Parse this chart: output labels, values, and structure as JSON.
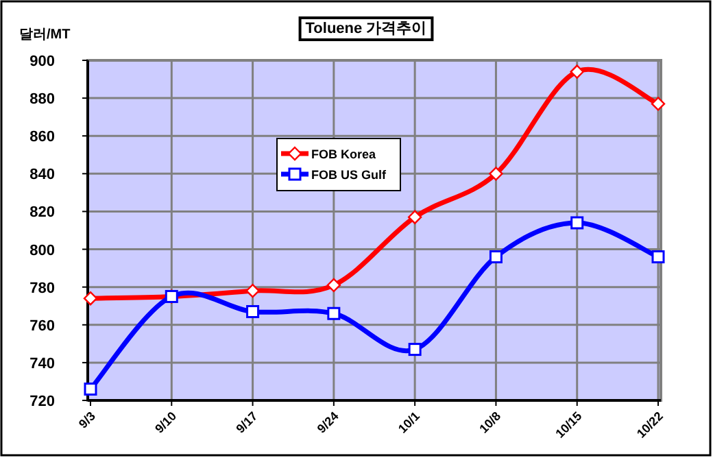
{
  "chart_data": {
    "type": "line",
    "title": "Toluene 가격추이",
    "ylabel": "달러/MT",
    "categories": [
      "9/3",
      "9/10",
      "9/17",
      "9/24",
      "10/1",
      "10/8",
      "10/15",
      "10/22"
    ],
    "series": [
      {
        "name": "FOB Korea",
        "color": "#ff0000",
        "marker": "diamond",
        "values": [
          774,
          775,
          778,
          781,
          817,
          840,
          894,
          877
        ]
      },
      {
        "name": "FOB US Gulf",
        "color": "#0000ff",
        "marker": "square",
        "values": [
          726,
          775,
          767,
          766,
          747,
          796,
          814,
          796
        ]
      }
    ],
    "ylim": [
      720,
      900
    ],
    "yticks": [
      720,
      740,
      760,
      780,
      800,
      820,
      840,
      860,
      880,
      900
    ],
    "grid": true,
    "legend": "top left",
    "line_style": "solid"
  }
}
